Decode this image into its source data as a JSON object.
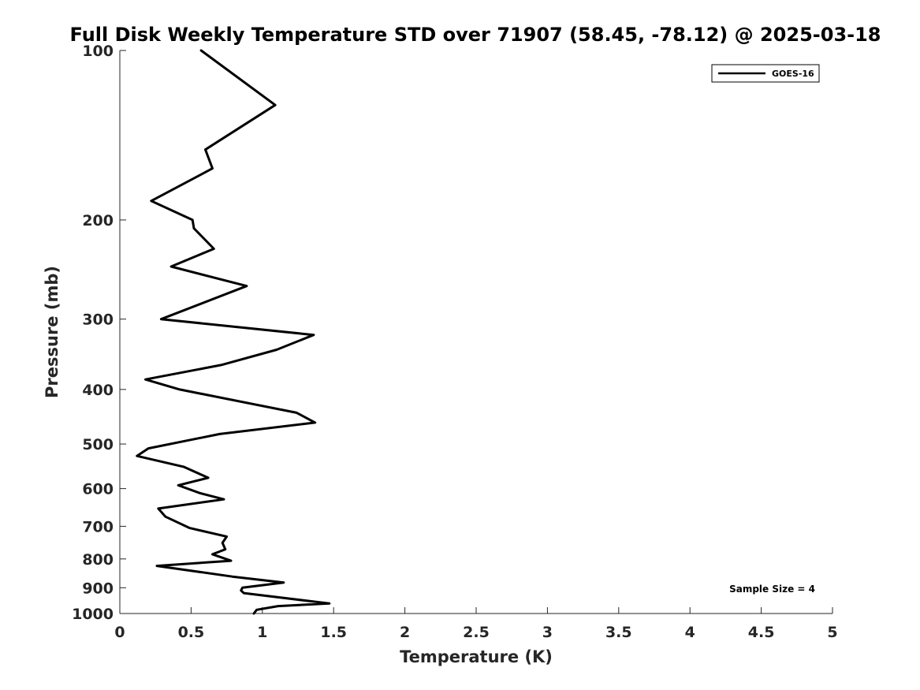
{
  "chart_data": {
    "type": "line",
    "title": "Full Disk Weekly Temperature STD over 71907 (58.45, -78.12) @ 2025-03-18",
    "xlabel": "Temperature (K)",
    "ylabel": "Pressure (mb)",
    "xlim": [
      0,
      5
    ],
    "ylim": [
      100,
      1000
    ],
    "yscale": "log",
    "y_reversed": true,
    "grid": false,
    "x_ticks": [
      0,
      0.5,
      1,
      1.5,
      2,
      2.5,
      3,
      3.5,
      4,
      4.5,
      5
    ],
    "x_tick_labels": [
      "0",
      "0.5",
      "1",
      "1.5",
      "2",
      "2.5",
      "3",
      "3.5",
      "4",
      "4.5",
      "5"
    ],
    "y_ticks": [
      100,
      200,
      300,
      400,
      500,
      600,
      700,
      800,
      900,
      1000
    ],
    "y_tick_labels": [
      "100",
      "200",
      "300",
      "400",
      "500",
      "600",
      "700",
      "800",
      "900",
      "1000"
    ],
    "legend": {
      "position": "top-right",
      "entries": [
        "GOES-16"
      ]
    },
    "annotation": "Sample Size = 4",
    "series": [
      {
        "name": "GOES-16",
        "color": "#000000",
        "points": [
          [
            0.57,
            100
          ],
          [
            1.09,
            125
          ],
          [
            0.6,
            150
          ],
          [
            0.65,
            162
          ],
          [
            0.22,
            185
          ],
          [
            0.51,
            200
          ],
          [
            0.52,
            207
          ],
          [
            0.66,
            225
          ],
          [
            0.36,
            242
          ],
          [
            0.89,
            262
          ],
          [
            0.29,
            300
          ],
          [
            1.36,
            320
          ],
          [
            1.1,
            340
          ],
          [
            0.71,
            362
          ],
          [
            0.18,
            384
          ],
          [
            0.42,
            400
          ],
          [
            1.24,
            440
          ],
          [
            1.37,
            458
          ],
          [
            0.7,
            480
          ],
          [
            0.2,
            509
          ],
          [
            0.12,
            525
          ],
          [
            0.45,
            549
          ],
          [
            0.62,
            574
          ],
          [
            0.41,
            592
          ],
          [
            0.56,
            611
          ],
          [
            0.73,
            627
          ],
          [
            0.27,
            651
          ],
          [
            0.32,
            673
          ],
          [
            0.49,
            705
          ],
          [
            0.75,
            730
          ],
          [
            0.72,
            749
          ],
          [
            0.74,
            769
          ],
          [
            0.65,
            785
          ],
          [
            0.78,
            806
          ],
          [
            0.26,
            823
          ],
          [
            0.79,
            860
          ],
          [
            1.15,
            881
          ],
          [
            0.86,
            900
          ],
          [
            0.85,
            910
          ],
          [
            0.87,
            920
          ],
          [
            1.47,
            960
          ],
          [
            1.11,
            970
          ],
          [
            0.96,
            985
          ],
          [
            0.94,
            1000
          ]
        ]
      }
    ]
  }
}
